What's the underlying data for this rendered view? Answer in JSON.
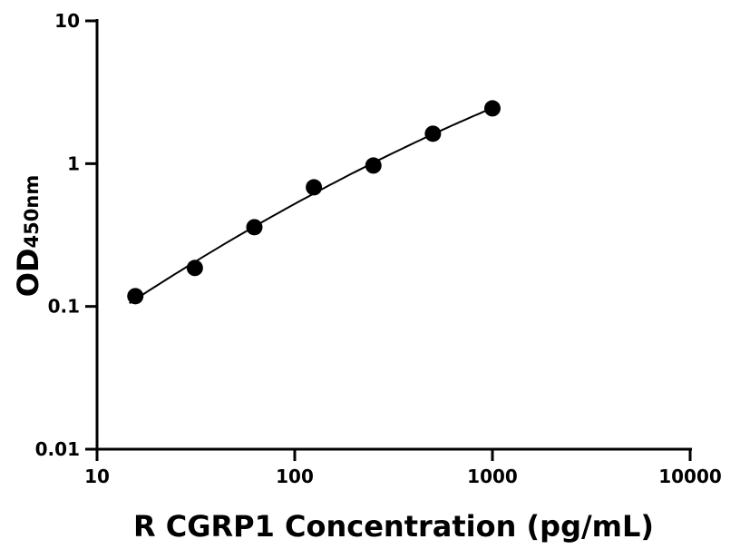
{
  "chart_data": {
    "type": "scatter",
    "title": "",
    "xlabel": "R CGRP1 Concentration (pg/mL)",
    "ylabel": "OD",
    "ylabel_subscript": "450nm",
    "x_scale": "log",
    "y_scale": "log",
    "xlim": [
      10,
      10000
    ],
    "ylim": [
      0.01,
      10
    ],
    "x_ticks": [
      "10",
      "100",
      "1000",
      "10000"
    ],
    "y_ticks": [
      "0.01",
      "0.1",
      "1",
      "10"
    ],
    "grid": false,
    "fit_curve": true,
    "marker_color": "#000000",
    "x": [
      15.625,
      31.25,
      62.5,
      125,
      250,
      500,
      1000
    ],
    "y": [
      0.118,
      0.186,
      0.359,
      0.683,
      0.97,
      1.62,
      2.44
    ]
  }
}
